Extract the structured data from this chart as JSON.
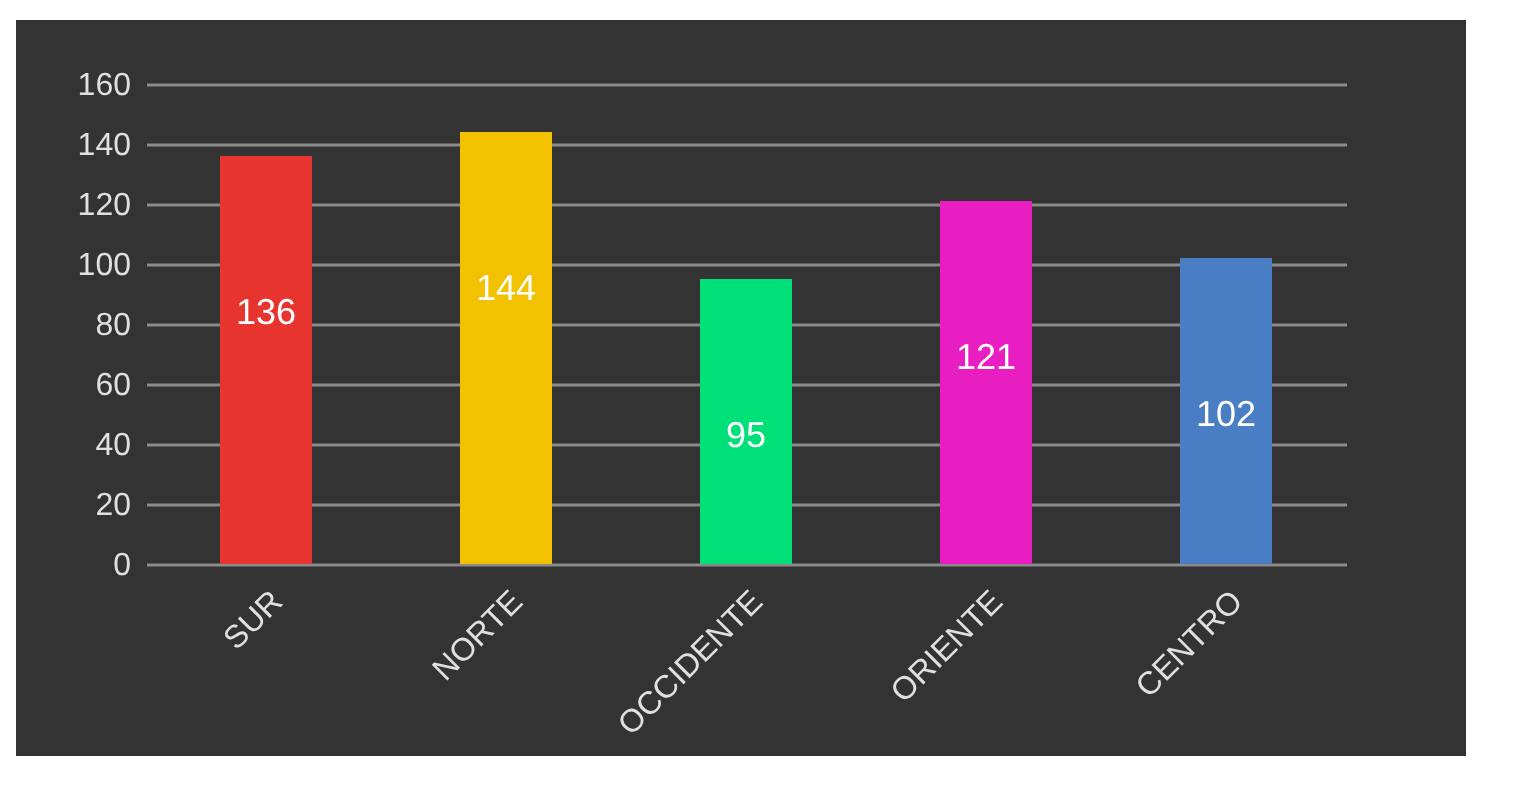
{
  "chart_data": {
    "type": "bar",
    "categories": [
      "SUR",
      "NORTE",
      "OCCIDENTE",
      "ORIENTE",
      "CENTRO"
    ],
    "values": [
      136,
      144,
      95,
      121,
      102
    ],
    "colors": [
      "#e8342e",
      "#f2c200",
      "#00e079",
      "#e81ec2",
      "#4a7ec4"
    ],
    "ylim": [
      0,
      160
    ],
    "yticks": [
      0,
      20,
      40,
      60,
      80,
      100,
      120,
      140,
      160
    ],
    "grid": "y",
    "data_labels": true
  }
}
